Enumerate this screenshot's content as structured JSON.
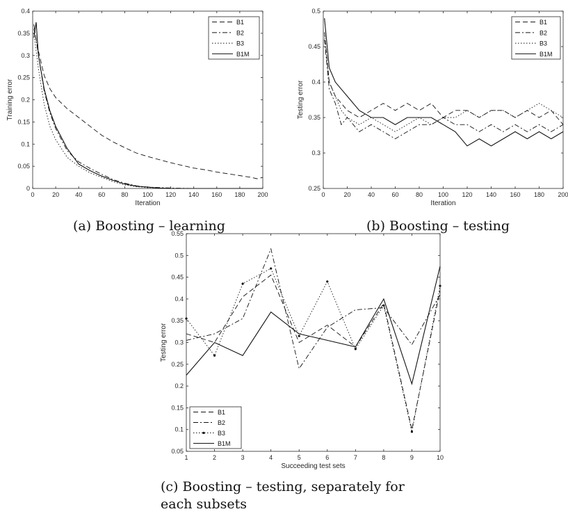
{
  "captions": {
    "a": "(a) Boosting – learning",
    "b": "(b) Boosting – testing",
    "c1": "(c) Boosting – testing, separately for",
    "c2": "each subsets"
  },
  "chart_data": [
    {
      "type": "line",
      "title": "",
      "xlabel": "Iteration",
      "ylabel": "Training error",
      "xlim": [
        0,
        200
      ],
      "ylim": [
        0,
        0.4
      ],
      "xticks": [
        0,
        20,
        40,
        60,
        80,
        100,
        120,
        140,
        160,
        180,
        200
      ],
      "yticks": [
        0,
        0.05,
        0.1,
        0.15,
        0.2,
        0.25,
        0.3,
        0.35,
        0.4
      ],
      "grid": false,
      "legend": "top-right",
      "series": [
        {
          "name": "B1",
          "style": "dashed",
          "x": [
            1,
            5,
            10,
            15,
            20,
            30,
            40,
            50,
            60,
            70,
            80,
            90,
            100,
            110,
            120,
            130,
            140,
            150,
            160,
            170,
            180,
            190,
            195,
            200
          ],
          "y": [
            0.36,
            0.31,
            0.255,
            0.225,
            0.205,
            0.18,
            0.16,
            0.14,
            0.12,
            0.105,
            0.092,
            0.08,
            0.072,
            0.065,
            0.058,
            0.052,
            0.046,
            0.042,
            0.037,
            0.033,
            0.029,
            0.025,
            0.022,
            0.025
          ]
        },
        {
          "name": "B2",
          "style": "dashdot",
          "x": [
            1,
            5,
            10,
            15,
            20,
            30,
            40,
            50,
            60,
            70,
            80,
            90,
            100,
            110,
            120,
            140,
            160,
            200
          ],
          "y": [
            0.37,
            0.3,
            0.22,
            0.17,
            0.135,
            0.085,
            0.06,
            0.045,
            0.032,
            0.02,
            0.012,
            0.006,
            0.003,
            0.002,
            0.001,
            0.0,
            0.0,
            0.0
          ]
        },
        {
          "name": "B3",
          "style": "dotted",
          "x": [
            1,
            5,
            10,
            15,
            20,
            30,
            40,
            50,
            60,
            70,
            80,
            90,
            100,
            110,
            120,
            140,
            160,
            200
          ],
          "y": [
            0.35,
            0.27,
            0.19,
            0.14,
            0.11,
            0.07,
            0.05,
            0.035,
            0.025,
            0.015,
            0.008,
            0.004,
            0.002,
            0.001,
            0.0,
            0.0,
            0.0,
            0.0
          ]
        },
        {
          "name": "B1M",
          "style": "solid",
          "x": [
            1,
            3,
            5,
            10,
            15,
            20,
            30,
            40,
            50,
            60,
            70,
            80,
            90,
            100,
            110,
            120,
            140,
            160,
            200
          ],
          "y": [
            0.34,
            0.375,
            0.3,
            0.225,
            0.175,
            0.14,
            0.09,
            0.055,
            0.04,
            0.028,
            0.018,
            0.01,
            0.005,
            0.003,
            0.001,
            0.0,
            0.0,
            0.0,
            0.0
          ]
        }
      ]
    },
    {
      "type": "line",
      "title": "",
      "xlabel": "Iteration",
      "ylabel": "Testing error",
      "xlim": [
        0,
        200
      ],
      "ylim": [
        0.25,
        0.5
      ],
      "xticks": [
        0,
        20,
        40,
        60,
        80,
        100,
        120,
        140,
        160,
        180,
        200
      ],
      "yticks": [
        0.25,
        0.3,
        0.35,
        0.4,
        0.45,
        0.5
      ],
      "grid": false,
      "legend": "top-right",
      "series": [
        {
          "name": "B1",
          "style": "dashed",
          "x": [
            1,
            5,
            10,
            15,
            20,
            30,
            40,
            50,
            60,
            70,
            80,
            90,
            100,
            110,
            120,
            130,
            140,
            150,
            160,
            170,
            180,
            190,
            200
          ],
          "y": [
            0.47,
            0.4,
            0.38,
            0.37,
            0.36,
            0.35,
            0.36,
            0.37,
            0.36,
            0.37,
            0.36,
            0.37,
            0.35,
            0.36,
            0.36,
            0.35,
            0.36,
            0.36,
            0.35,
            0.36,
            0.35,
            0.36,
            0.34
          ]
        },
        {
          "name": "B2",
          "style": "dashdot",
          "x": [
            1,
            5,
            10,
            15,
            20,
            30,
            40,
            50,
            60,
            70,
            80,
            90,
            100,
            110,
            120,
            130,
            140,
            150,
            160,
            170,
            180,
            190,
            200
          ],
          "y": [
            0.46,
            0.39,
            0.37,
            0.34,
            0.35,
            0.33,
            0.34,
            0.33,
            0.32,
            0.33,
            0.34,
            0.34,
            0.35,
            0.34,
            0.34,
            0.33,
            0.34,
            0.33,
            0.34,
            0.33,
            0.34,
            0.33,
            0.34
          ]
        },
        {
          "name": "B3",
          "style": "dotted",
          "x": [
            1,
            5,
            10,
            15,
            20,
            30,
            40,
            50,
            60,
            70,
            80,
            90,
            100,
            110,
            120,
            130,
            140,
            150,
            160,
            170,
            180,
            190,
            200
          ],
          "y": [
            0.47,
            0.4,
            0.38,
            0.36,
            0.35,
            0.34,
            0.35,
            0.34,
            0.33,
            0.34,
            0.35,
            0.34,
            0.35,
            0.35,
            0.36,
            0.35,
            0.36,
            0.36,
            0.35,
            0.36,
            0.37,
            0.36,
            0.35
          ]
        },
        {
          "name": "B1M",
          "style": "solid",
          "x": [
            1,
            5,
            10,
            15,
            20,
            30,
            40,
            50,
            60,
            70,
            80,
            90,
            100,
            110,
            120,
            130,
            140,
            150,
            160,
            170,
            180,
            190,
            200
          ],
          "y": [
            0.49,
            0.42,
            0.4,
            0.39,
            0.38,
            0.36,
            0.35,
            0.35,
            0.34,
            0.35,
            0.35,
            0.35,
            0.34,
            0.33,
            0.31,
            0.32,
            0.31,
            0.32,
            0.33,
            0.32,
            0.33,
            0.32,
            0.33
          ]
        }
      ]
    },
    {
      "type": "line",
      "title": "",
      "xlabel": "Succeeding test sets",
      "ylabel": "Testing error",
      "xlim": [
        1,
        10
      ],
      "ylim": [
        0.05,
        0.55
      ],
      "xticks": [
        1,
        2,
        3,
        4,
        5,
        6,
        7,
        8,
        9,
        10
      ],
      "yticks": [
        0.05,
        0.1,
        0.15,
        0.2,
        0.25,
        0.3,
        0.35,
        0.4,
        0.45,
        0.5,
        0.55
      ],
      "grid": false,
      "legend": "bottom-left",
      "series": [
        {
          "name": "B1",
          "style": "dashed",
          "x": [
            1,
            2,
            3,
            4,
            5,
            6,
            7,
            8,
            9,
            10
          ],
          "y": [
            0.32,
            0.3,
            0.405,
            0.455,
            0.3,
            0.34,
            0.29,
            0.39,
            0.1,
            0.42
          ]
        },
        {
          "name": "B2",
          "style": "dashdot",
          "x": [
            1,
            2,
            3,
            4,
            5,
            6,
            7,
            8,
            9,
            10
          ],
          "y": [
            0.305,
            0.32,
            0.355,
            0.515,
            0.24,
            0.335,
            0.375,
            0.38,
            0.295,
            0.41
          ]
        },
        {
          "name": "B3",
          "style": "dotted-marker",
          "x": [
            1,
            2,
            3,
            4,
            5,
            6,
            7,
            8,
            9,
            10
          ],
          "y": [
            0.355,
            0.27,
            0.435,
            0.47,
            0.315,
            0.44,
            0.285,
            0.385,
            0.095,
            0.43
          ]
        },
        {
          "name": "B1M",
          "style": "solid",
          "x": [
            1,
            2,
            3,
            4,
            5,
            6,
            7,
            8,
            9,
            10
          ],
          "y": [
            0.225,
            0.3,
            0.27,
            0.37,
            0.32,
            0.305,
            0.29,
            0.4,
            0.205,
            0.475
          ]
        }
      ]
    }
  ]
}
